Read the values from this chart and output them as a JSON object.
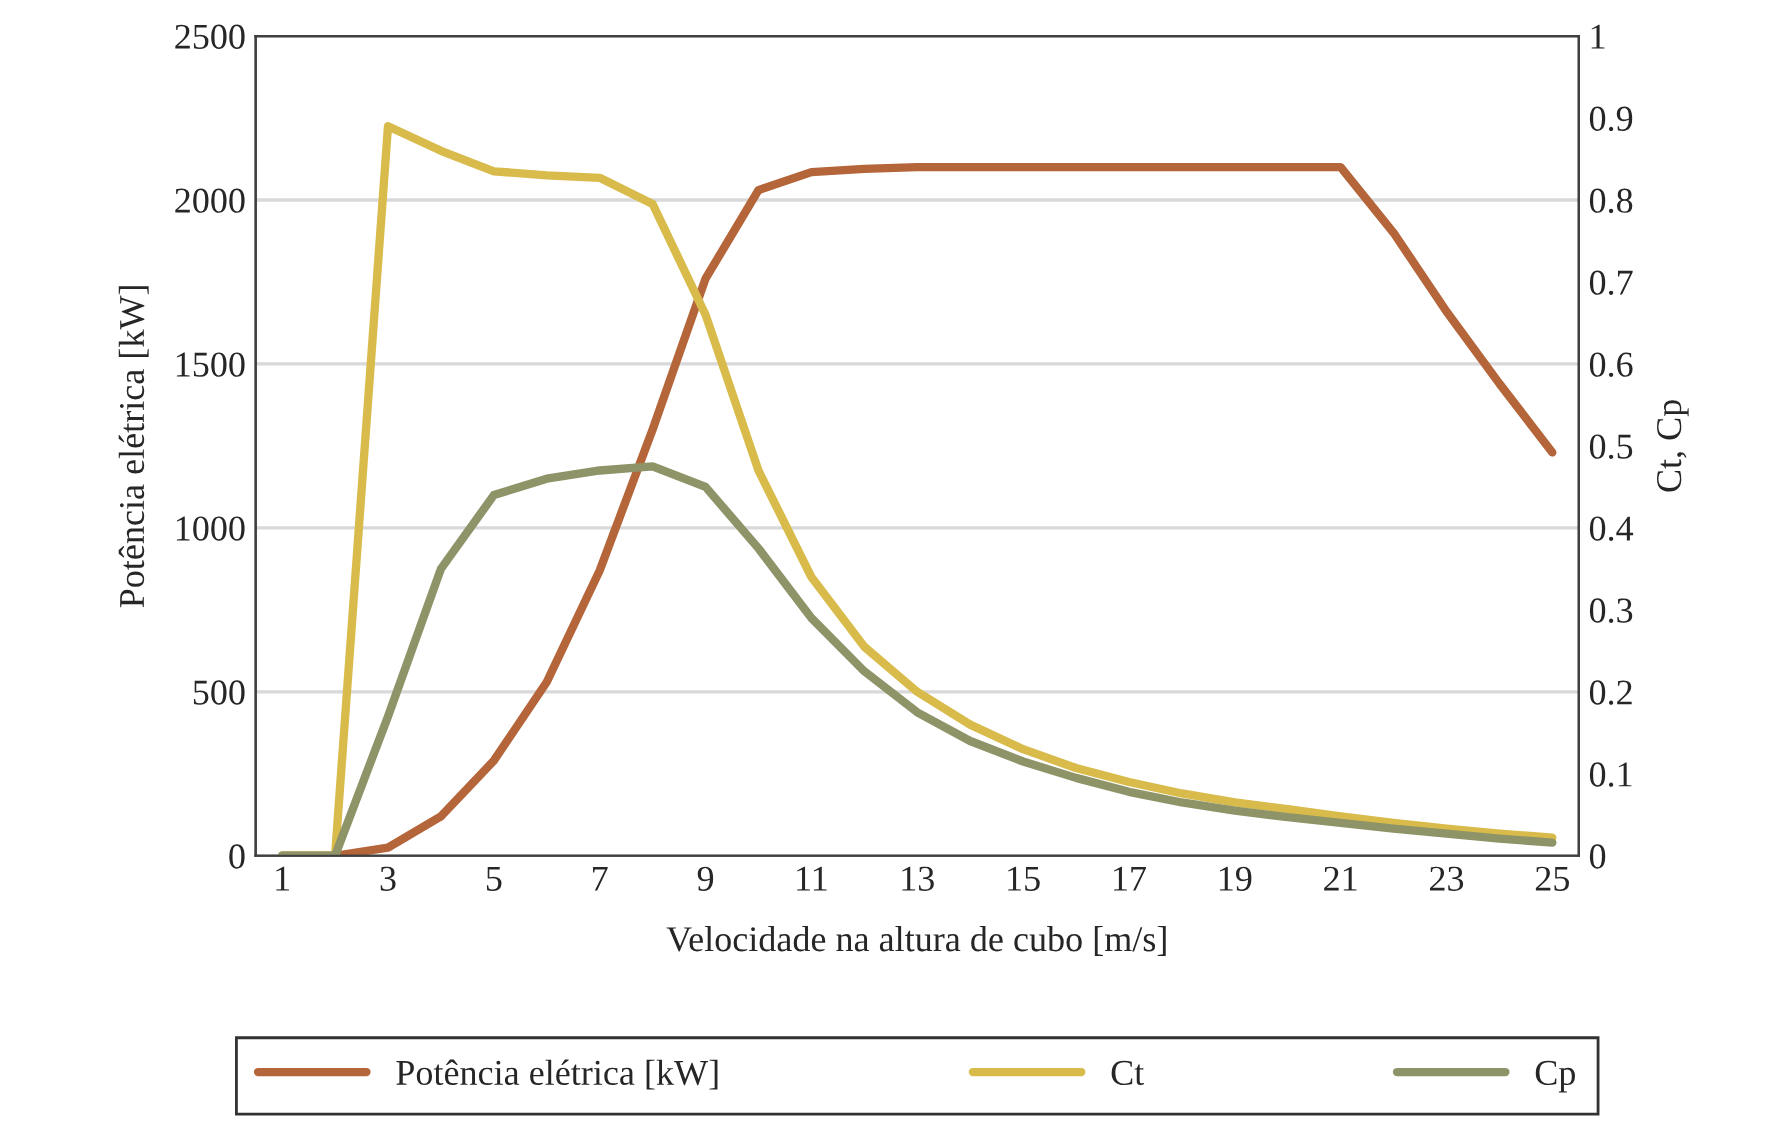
{
  "chart_data": {
    "type": "line",
    "xlabel": "Velocidade na altura de cubo [m/s]",
    "ylabel": "Potência elétrica [kW]",
    "y2label": "Ct, Cp",
    "x": [
      1,
      2,
      3,
      4,
      5,
      6,
      7,
      8,
      9,
      10,
      11,
      12,
      13,
      14,
      15,
      16,
      17,
      18,
      19,
      20,
      21,
      22,
      23,
      24,
      25
    ],
    "xlim": [
      0.5,
      25.5
    ],
    "xticks": [
      1,
      3,
      5,
      7,
      9,
      11,
      13,
      15,
      17,
      19,
      21,
      23,
      25
    ],
    "ylim": [
      0,
      2500
    ],
    "yticks": [
      0,
      500,
      1000,
      1500,
      2000,
      2500
    ],
    "y2lim": [
      0,
      1
    ],
    "y2ticks": [
      0,
      0.1,
      0.2,
      0.3,
      0.4,
      0.5,
      0.6,
      0.7,
      0.8,
      0.9,
      1
    ],
    "grid": "y",
    "legend": "bottom",
    "marker": "none",
    "line_style": "solid",
    "series": [
      {
        "name": "Potência elétrica [kW]",
        "color": "#b5653a",
        "values": [
          0,
          0,
          25,
          120,
          290,
          530,
          870,
          1300,
          1760,
          2030,
          2085,
          2095,
          2100,
          2100,
          2100,
          2100,
          2100,
          2100,
          2100,
          2100,
          2100,
          1900,
          1660,
          1440,
          1230
        ]
      },
      {
        "name": "Ct",
        "color": "#d8bb4a",
        "axis": "y2",
        "values": [
          0,
          0,
          0.89,
          0.86,
          0.835,
          0.83,
          0.827,
          0.795,
          0.66,
          0.47,
          0.34,
          0.255,
          0.2,
          0.16,
          0.13,
          0.107,
          0.09,
          0.076,
          0.065,
          0.057,
          0.048,
          0.04,
          0.033,
          0.027,
          0.022
        ]
      },
      {
        "name": "Cp",
        "color": "#8e9467",
        "axis": "y2",
        "values": [
          0,
          0,
          0.17,
          0.35,
          0.44,
          0.46,
          0.47,
          0.475,
          0.45,
          0.375,
          0.29,
          0.225,
          0.175,
          0.14,
          0.115,
          0.095,
          0.078,
          0.065,
          0.055,
          0.047,
          0.04,
          0.033,
          0.027,
          0.021,
          0.016
        ]
      }
    ]
  }
}
